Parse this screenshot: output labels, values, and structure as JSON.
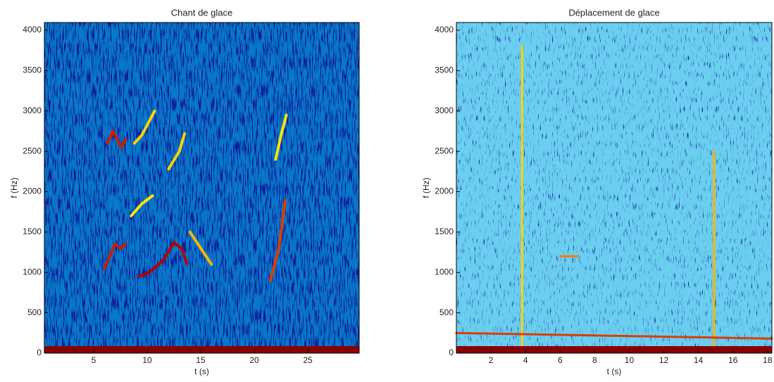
{
  "chart_data": [
    {
      "type": "spectrogram",
      "title": "Chant de glace",
      "x_label": "t (s)",
      "y_label": "f (Hz)",
      "xlim": [
        0.4,
        29.8
      ],
      "ylim": [
        0,
        4096
      ],
      "xticks": [
        5,
        10,
        15,
        20,
        25
      ],
      "yticks": [
        0,
        500,
        1000,
        1500,
        2000,
        2500,
        3000,
        3500,
        4000
      ],
      "series": [
        {
          "color": "#c81e00",
          "t": [
            6.3,
            6.8,
            7.2,
            7.6,
            8.0
          ],
          "f": [
            2600,
            2750,
            2650,
            2550,
            2650
          ]
        },
        {
          "color": "#ffd200",
          "t": [
            8.8,
            9.5,
            10.3,
            10.7
          ],
          "f": [
            2600,
            2700,
            2900,
            3000
          ]
        },
        {
          "color": "#c81e00",
          "t": [
            6.0,
            6.5,
            7.0,
            7.5,
            8.0
          ],
          "f": [
            1050,
            1200,
            1350,
            1300,
            1350
          ]
        },
        {
          "color": "#b40000",
          "t": [
            9.2,
            10.2,
            11.5,
            12.5,
            13.2,
            13.7
          ],
          "f": [
            950,
            1000,
            1150,
            1370,
            1300,
            1110
          ]
        },
        {
          "color": "#ffb400",
          "t": [
            14.0,
            14.5,
            15.0,
            16.0
          ],
          "f": [
            1500,
            1400,
            1300,
            1100
          ]
        },
        {
          "color": "#ffe600",
          "t": [
            8.5,
            9.5,
            10.5
          ],
          "f": [
            1700,
            1850,
            1950
          ]
        },
        {
          "color": "#ffd200",
          "t": [
            12.0,
            13.0,
            13.5
          ],
          "f": [
            2280,
            2500,
            2720
          ]
        },
        {
          "color": "#dc3c00",
          "t": [
            21.5,
            22.3,
            22.9
          ],
          "f": [
            900,
            1300,
            1890
          ]
        },
        {
          "color": "#ffe600",
          "t": [
            22.0,
            22.5,
            23.0
          ],
          "f": [
            2400,
            2700,
            2950
          ]
        }
      ]
    },
    {
      "type": "spectrogram",
      "title": "Déplacement de glace",
      "x_label": "t (s)",
      "y_label": "f (Hz)",
      "xlim": [
        0,
        18.25
      ],
      "ylim": [
        0,
        4096
      ],
      "xticks": [
        2,
        4,
        6,
        8,
        10,
        12,
        14,
        16,
        18
      ],
      "yticks": [
        0,
        500,
        1000,
        1500,
        2000,
        2500,
        3000,
        3500,
        4000
      ],
      "series": [
        {
          "color": "#ffd200",
          "t": [
            3.8,
            3.8
          ],
          "f": [
            100,
            3800
          ]
        },
        {
          "color": "#ffb400",
          "t": [
            14.9,
            14.9
          ],
          "f": [
            100,
            2500
          ]
        },
        {
          "color": "#dc3c00",
          "t": [
            0,
            18.25
          ],
          "f": [
            250,
            180
          ]
        },
        {
          "color": "#ff7800",
          "t": [
            6.0,
            7.0
          ],
          "f": [
            1200,
            1200
          ]
        }
      ]
    }
  ]
}
